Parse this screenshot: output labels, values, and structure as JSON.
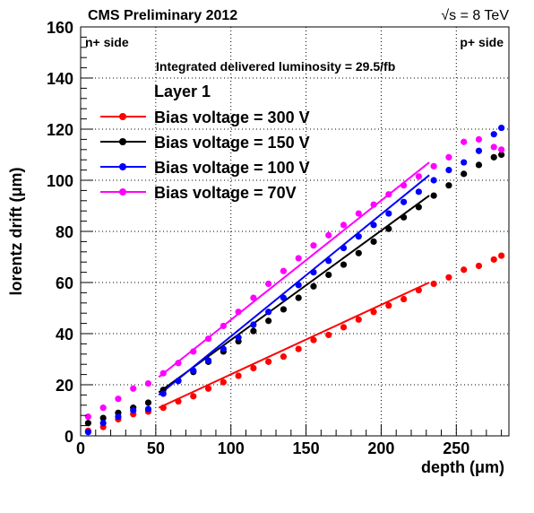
{
  "chart_data": {
    "type": "scatter",
    "header_left": "CMS Preliminary 2012",
    "header_right": "√s = 8 TeV",
    "corner_left": "n+ side",
    "corner_right": "p+ side",
    "luminosity_text": "Integrated delivered luminosity = 29.5/fb",
    "legend_title": "Layer 1",
    "xlabel": "depth (μm)",
    "ylabel": "lorentz drift (μm)",
    "xlim": [
      0,
      285
    ],
    "ylim": [
      0,
      160
    ],
    "x_ticks": [
      0,
      50,
      100,
      150,
      200,
      250
    ],
    "y_ticks": [
      0,
      20,
      40,
      60,
      80,
      100,
      120,
      140,
      160
    ],
    "grid": true,
    "legend_position": "top-left",
    "series": [
      {
        "name": "Bias voltage = 300 V",
        "color": "#ff0000",
        "x": [
          5,
          15,
          25,
          35,
          45,
          55,
          65,
          75,
          85,
          95,
          105,
          115,
          125,
          135,
          145,
          155,
          165,
          175,
          185,
          195,
          205,
          215,
          225,
          235,
          245,
          255,
          265,
          275,
          280
        ],
        "y": [
          2,
          3.5,
          6.5,
          8.5,
          9.5,
          11,
          13.5,
          15.5,
          18.5,
          21,
          23.5,
          26.5,
          29,
          31,
          34,
          37.5,
          39.5,
          42.5,
          45.5,
          48.5,
          51,
          53.5,
          57,
          59.5,
          62,
          65,
          66.5,
          69,
          70.5
        ],
        "fit": {
          "x0": 52,
          "y0": 11,
          "x1": 232,
          "y1": 60
        }
      },
      {
        "name": "Bias voltage = 150 V",
        "color": "#000000",
        "x": [
          5,
          15,
          25,
          35,
          45,
          55,
          65,
          75,
          85,
          95,
          105,
          115,
          125,
          135,
          145,
          155,
          165,
          175,
          185,
          195,
          205,
          215,
          225,
          235,
          245,
          255,
          265,
          275,
          280
        ],
        "y": [
          5,
          7,
          9,
          11,
          13,
          18,
          21.5,
          25,
          29,
          33,
          37,
          41,
          45,
          49.5,
          54,
          58.5,
          63,
          67,
          71.5,
          76,
          81,
          85.5,
          89.5,
          94,
          98,
          102.5,
          106,
          109,
          110
        ],
        "fit": {
          "x0": 52,
          "y0": 17,
          "x1": 232,
          "y1": 94
        }
      },
      {
        "name": "Bias voltage = 100 V",
        "color": "#0000ff",
        "x": [
          5,
          15,
          25,
          35,
          45,
          55,
          65,
          75,
          85,
          95,
          105,
          115,
          125,
          135,
          145,
          155,
          165,
          175,
          185,
          195,
          205,
          215,
          225,
          235,
          245,
          255,
          265,
          275,
          280
        ],
        "y": [
          1.5,
          5,
          7.5,
          10,
          10.5,
          16.5,
          21.5,
          25.5,
          29.5,
          34,
          38.5,
          43.5,
          48.5,
          54,
          59,
          64,
          68.5,
          73.5,
          78,
          82.5,
          87,
          91.5,
          95.5,
          100,
          104,
          107,
          111.5,
          118,
          120.5
        ],
        "fit": {
          "x0": 52,
          "y0": 16,
          "x1": 232,
          "y1": 102
        }
      },
      {
        "name": "Bias voltage = 70V",
        "color": "#ff00ff",
        "x": [
          5,
          15,
          25,
          35,
          45,
          55,
          65,
          75,
          85,
          95,
          105,
          115,
          125,
          135,
          145,
          155,
          165,
          175,
          185,
          195,
          205,
          215,
          225,
          235,
          245,
          255,
          265,
          275,
          280
        ],
        "y": [
          7.5,
          11,
          14.5,
          18.5,
          20.5,
          24.5,
          28.5,
          33,
          38,
          43,
          48.5,
          54,
          59.5,
          64.5,
          69.5,
          74.5,
          78.5,
          82.5,
          87,
          90.5,
          94.5,
          98,
          101.5,
          105.5,
          109,
          115,
          116,
          113,
          112
        ],
        "fit": {
          "x0": 52,
          "y0": 23,
          "x1": 232,
          "y1": 107
        }
      }
    ]
  }
}
